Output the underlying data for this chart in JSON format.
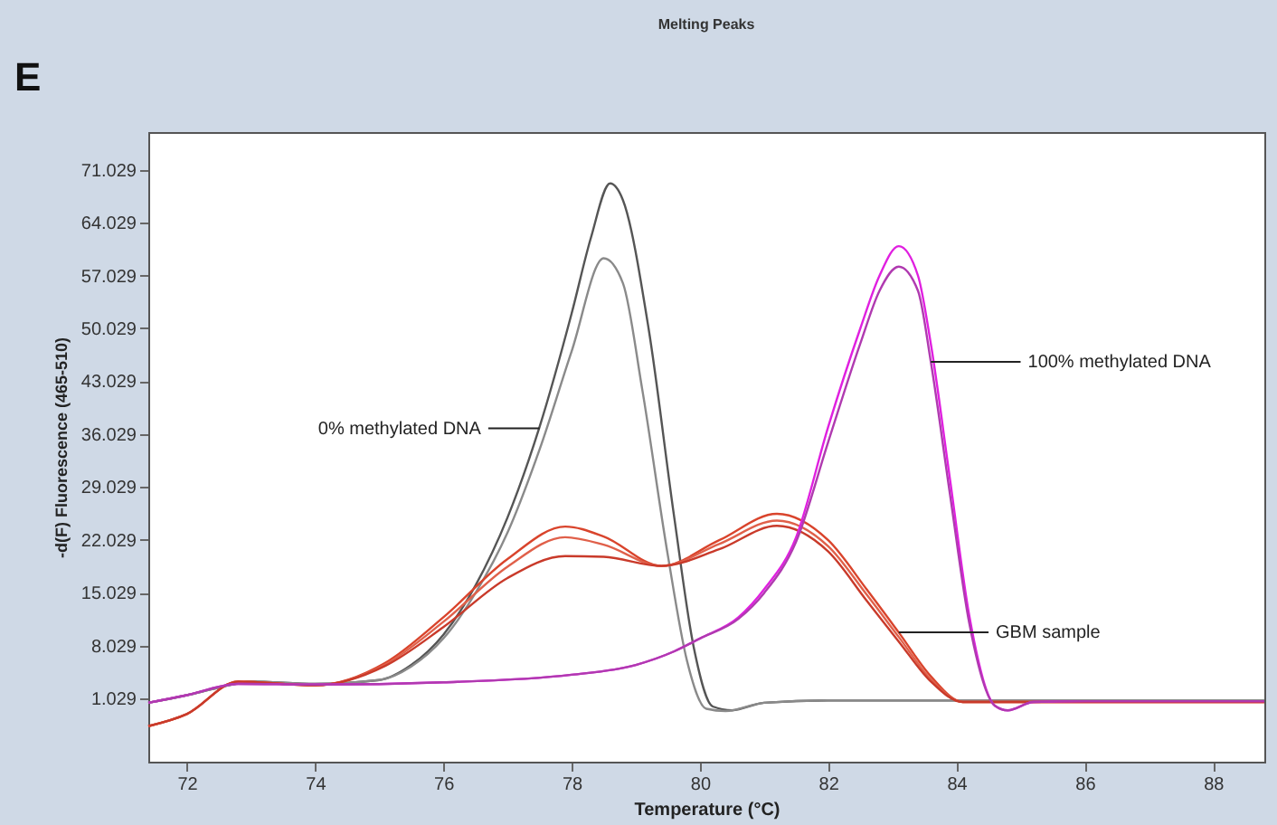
{
  "chart_data": {
    "type": "line",
    "title": "Melting Peaks",
    "xlabel": "Temperature (°C)",
    "ylabel": "-d(F) Fluorescence (465-510)",
    "xlim": [
      71.4,
      88.8
    ],
    "ylim": [
      -7.3,
      76
    ],
    "xticks": [
      72,
      74,
      76,
      78,
      80,
      82,
      84,
      86,
      88
    ],
    "yticks": [
      1.029,
      8.029,
      15.029,
      22.029,
      29.029,
      36.029,
      43.029,
      50.029,
      57.029,
      64.029,
      71.029
    ],
    "grid": false,
    "marker": "none",
    "line_style": "solid",
    "annotations": [
      "E",
      {
        "text": "0% methylated DNA",
        "x": 77.5,
        "y": 36.8
      },
      {
        "text": "100% methylated DNA",
        "x": 83.6,
        "y": 45.6
      },
      {
        "text": "GBM sample",
        "x": 83.1,
        "y": 9.8
      }
    ],
    "series": [
      {
        "color": "#555555",
        "x": [
          71.4,
          72.0,
          72.5,
          73.0,
          74.0,
          75.0,
          75.5,
          76.0,
          76.5,
          77.0,
          77.5,
          78.0,
          78.3,
          78.6,
          78.8,
          79.2,
          79.6,
          79.9,
          80.2,
          80.5,
          81.0,
          82.0,
          86.0,
          88.8
        ],
        "values": [
          0.5,
          1.5,
          2.5,
          3.3,
          3.0,
          3.5,
          5.5,
          9.5,
          16,
          25,
          37,
          52,
          62,
          69.2,
          67,
          50,
          25,
          8,
          0,
          -0.5,
          0.5,
          0.8,
          0.8,
          0.8
        ]
      },
      {
        "color": "#8a8a8a",
        "x": [
          71.4,
          72.0,
          72.5,
          73.0,
          74.0,
          75.0,
          75.5,
          76.0,
          76.5,
          77.0,
          77.5,
          78.0,
          78.5,
          78.8,
          79.1,
          79.5,
          79.8,
          80.1,
          80.4,
          81.0,
          82.0,
          86.0,
          88.8
        ],
        "values": [
          0.5,
          1.5,
          2.5,
          3.3,
          3.0,
          3.5,
          5.3,
          9.0,
          15,
          23,
          34,
          47,
          59.3,
          56,
          42,
          20,
          6,
          -0.3,
          -0.6,
          0.5,
          0.8,
          0.8,
          0.8
        ]
      },
      {
        "color": "#d9442c",
        "x": [
          71.4,
          72.0,
          72.8,
          74.0,
          75.1,
          76.0,
          77.0,
          77.9,
          78.5,
          79.4,
          80.3,
          81.2,
          82.0,
          82.6,
          83.1,
          83.6,
          84.1,
          86.0,
          88.8
        ],
        "values": [
          -2.6,
          -1.0,
          3.3,
          2.8,
          5.8,
          11.8,
          19.5,
          23.8,
          22.5,
          18.6,
          22.0,
          25.5,
          22.0,
          15.5,
          9.8,
          4.0,
          0.6,
          0.6,
          0.6
        ]
      },
      {
        "color": "#e0604a",
        "x": [
          71.4,
          72.0,
          72.8,
          74.0,
          75.1,
          76.0,
          77.0,
          77.9,
          78.5,
          79.4,
          80.3,
          81.2,
          82.0,
          82.6,
          83.1,
          83.6,
          84.1,
          86.0,
          88.8
        ],
        "values": [
          -2.6,
          -1.0,
          3.3,
          2.8,
          5.6,
          11.2,
          18.5,
          22.4,
          21.4,
          18.6,
          21.5,
          24.6,
          21.2,
          14.8,
          9.2,
          3.6,
          0.6,
          0.6,
          0.6
        ]
      },
      {
        "color": "#c93a2a",
        "x": [
          71.4,
          72.0,
          72.8,
          74.0,
          75.1,
          76.0,
          77.0,
          77.9,
          78.5,
          79.4,
          80.3,
          81.2,
          82.0,
          82.6,
          83.1,
          83.6,
          84.1,
          86.0,
          88.8
        ],
        "values": [
          -2.6,
          -1.0,
          3.3,
          2.8,
          5.4,
          10.5,
          17.0,
          19.9,
          19.8,
          18.6,
          20.8,
          23.9,
          20.5,
          14.0,
          8.6,
          3.3,
          0.6,
          0.6,
          0.6
        ]
      },
      {
        "color": "#e020e0",
        "x": [
          71.4,
          72.0,
          72.8,
          74.0,
          76.0,
          78.0,
          79.0,
          79.6,
          80.0,
          80.6,
          81.0,
          81.5,
          82.0,
          82.5,
          82.8,
          83.1,
          83.4,
          83.6,
          83.9,
          84.2,
          84.6,
          84.8,
          85.2,
          86.0,
          88.8
        ],
        "values": [
          0.5,
          1.5,
          3.0,
          2.9,
          3.2,
          4.2,
          5.5,
          7.3,
          9.0,
          11.8,
          15.5,
          22.4,
          37,
          50,
          57,
          60.9,
          57,
          48,
          30,
          12,
          0.1,
          -0.5,
          0.6,
          0.7,
          0.7
        ]
      },
      {
        "color": "#b03ab0",
        "x": [
          71.4,
          72.0,
          72.8,
          74.0,
          76.0,
          78.0,
          79.0,
          79.6,
          80.0,
          80.6,
          81.0,
          81.5,
          82.0,
          82.5,
          82.8,
          83.1,
          83.4,
          83.6,
          83.9,
          84.2,
          84.6,
          84.8,
          85.2,
          86.0,
          88.8
        ],
        "values": [
          0.5,
          1.5,
          3.0,
          2.9,
          3.2,
          4.2,
          5.5,
          7.3,
          9.0,
          11.6,
          15.0,
          21.8,
          35,
          48,
          55,
          58.2,
          55,
          45.6,
          28,
          11,
          0.1,
          -0.5,
          0.6,
          0.7,
          0.7
        ]
      }
    ]
  }
}
